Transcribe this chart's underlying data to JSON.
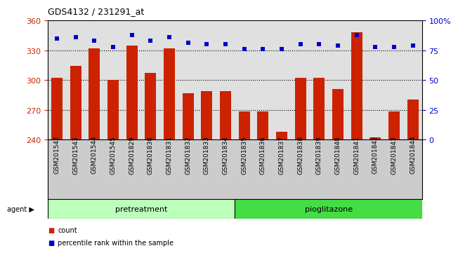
{
  "title": "GDS4132 / 231291_at",
  "categories": [
    "GSM201542",
    "GSM201543",
    "GSM201544",
    "GSM201545",
    "GSM201829",
    "GSM201830",
    "GSM201831",
    "GSM201832",
    "GSM201833",
    "GSM201834",
    "GSM201835",
    "GSM201836",
    "GSM201837",
    "GSM201838",
    "GSM201839",
    "GSM201840",
    "GSM201841",
    "GSM201842",
    "GSM201843",
    "GSM201844"
  ],
  "bar_values": [
    302,
    314,
    332,
    300,
    335,
    307,
    332,
    287,
    289,
    289,
    268,
    268,
    248,
    302,
    302,
    291,
    348,
    242,
    268,
    280
  ],
  "percentile_values": [
    85,
    86,
    83,
    78,
    88,
    83,
    86,
    81,
    80,
    80,
    76,
    76,
    76,
    80,
    80,
    79,
    88,
    78,
    78,
    79
  ],
  "bar_color": "#cc2200",
  "percentile_color": "#0000cc",
  "ylim_left": [
    240,
    360
  ],
  "ylim_right": [
    0,
    100
  ],
  "yticks_left": [
    240,
    270,
    300,
    330,
    360
  ],
  "yticks_right": [
    0,
    25,
    50,
    75,
    100
  ],
  "grid_lines": [
    270,
    300,
    330
  ],
  "pretreatment_indices": [
    0,
    9
  ],
  "pioglitazone_indices": [
    10,
    19
  ],
  "pretreatment_color": "#bbffbb",
  "pioglitazone_color": "#44dd44",
  "background_color": "#ffffff",
  "plot_bg_color": "#e0e0e0",
  "xtick_bg_color": "#cccccc",
  "bar_width": 0.6
}
